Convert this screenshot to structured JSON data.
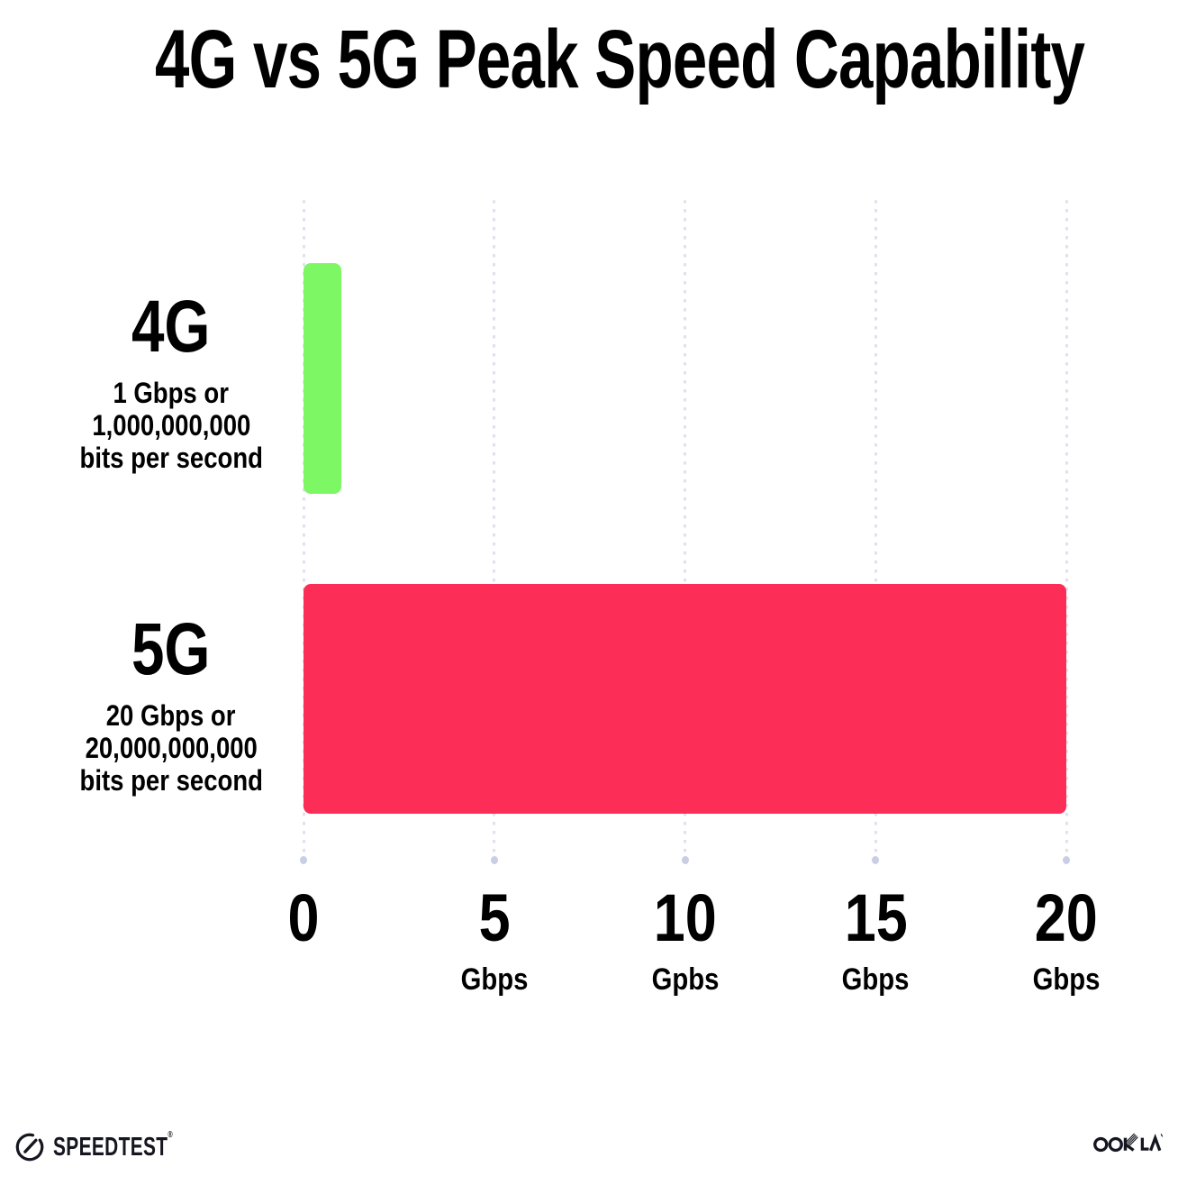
{
  "chart_data": {
    "type": "bar",
    "orientation": "horizontal",
    "title": "4G vs 5G Peak Speed Capability",
    "categories": [
      "4G",
      "5G"
    ],
    "values": [
      1,
      20
    ],
    "xlabel": "",
    "ylabel": "",
    "xlim": [
      0,
      20
    ],
    "x_unit": "Gbps",
    "grid": "dotted-vertical-gridlines",
    "legend": "none",
    "rows": [
      {
        "name": "4G",
        "value": 1,
        "color": "#7DF763",
        "sub_lines": [
          "1 Gbps or",
          "1,000,000,000",
          "bits per second"
        ]
      },
      {
        "name": "5G",
        "value": 20,
        "color": "#FC2D57",
        "sub_lines": [
          "20 Gbps or",
          "20,000,000,000",
          "bits per second"
        ]
      }
    ],
    "ticks": [
      {
        "value": 0,
        "label": "0",
        "unit": ""
      },
      {
        "value": 5,
        "label": "5",
        "unit": "Gbps"
      },
      {
        "value": 10,
        "label": "10",
        "unit": "Gpbs"
      },
      {
        "value": 15,
        "label": "15",
        "unit": "Gbps"
      },
      {
        "value": 20,
        "label": "20",
        "unit": "Gbps"
      }
    ]
  },
  "footer": {
    "speedtest_label": "SPEEDTEST",
    "speedtest_trademark": "®",
    "ookla_label": "OOKLA"
  },
  "colors": {
    "bar_4g": "#7DF763",
    "bar_5g": "#FC2D57",
    "gridline": "#DFE1F0",
    "grid_end_dot": "#C9CEE4",
    "text": "#000000",
    "logo": "#15161F",
    "background": "#FFFFFF"
  }
}
